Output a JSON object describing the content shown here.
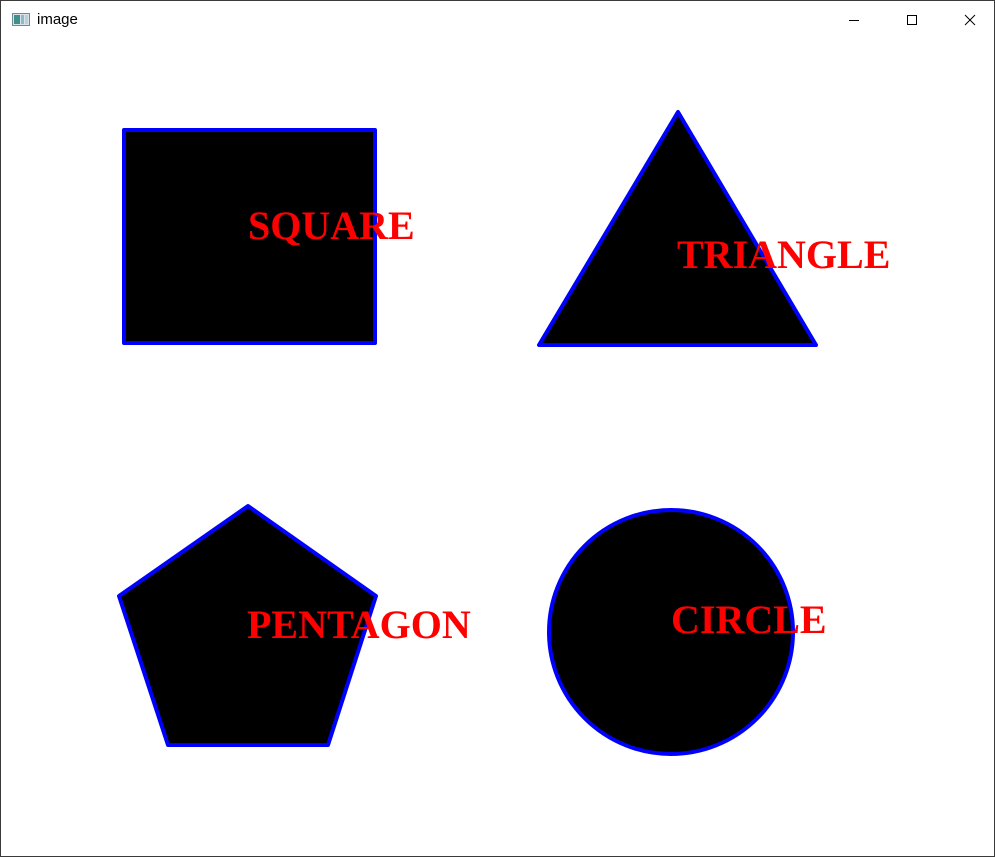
{
  "window": {
    "title": "image",
    "icons": {
      "app": "app-image-icon",
      "minimize": "minimize-icon",
      "maximize": "maximize-icon",
      "close": "close-icon"
    }
  },
  "canvas": {
    "background_color": "#ffffff",
    "fill_color": "#000000",
    "outline_color": "#0000ff",
    "label_color": "#ff0000",
    "shapes": [
      {
        "name": "square",
        "label": "SQUARE"
      },
      {
        "name": "triangle",
        "label": "TRIANGLE"
      },
      {
        "name": "pentagon",
        "label": "PENTAGON"
      },
      {
        "name": "circle",
        "label": "CIRCLE"
      }
    ]
  }
}
